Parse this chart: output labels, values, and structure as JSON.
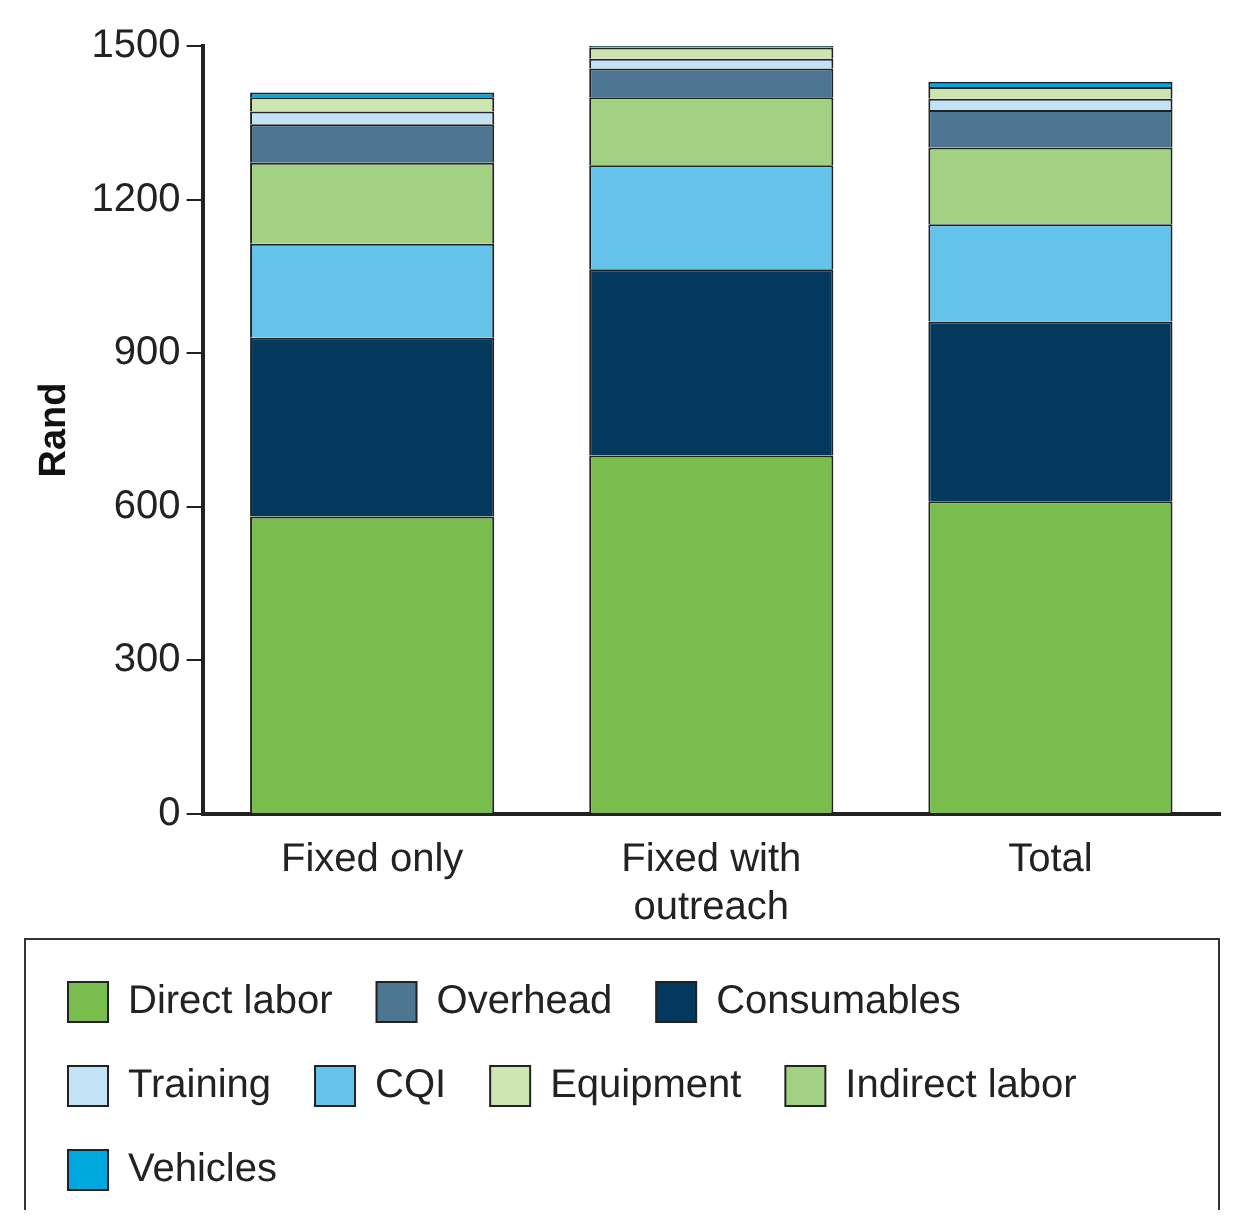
{
  "chart_data": {
    "type": "bar",
    "stacked": true,
    "ylabel": "Rand",
    "categories": [
      "Fixed only",
      "Fixed with outreach",
      "Total"
    ],
    "ylim": [
      0,
      1500
    ],
    "yticks": [
      0,
      300,
      600,
      900,
      1200,
      1500
    ],
    "grid": false,
    "legend": "bottom",
    "series": [
      {
        "name": "Direct labor",
        "color": "#7abd4f",
        "values": [
          581,
          700,
          611
        ]
      },
      {
        "name": "Consumables",
        "color": "#02395c",
        "values": [
          349,
          364,
          351
        ]
      },
      {
        "name": "CQI",
        "color": "#63c3eb",
        "values": [
          184,
          203,
          190
        ]
      },
      {
        "name": "Indirect labor",
        "color": "#a2d183",
        "values": [
          158,
          133,
          150
        ]
      },
      {
        "name": "Overhead",
        "color": "#4b7591",
        "values": [
          75,
          56,
          73
        ]
      },
      {
        "name": "Training",
        "color": "#c2e2f5",
        "values": [
          25,
          19,
          22
        ]
      },
      {
        "name": "Equipment",
        "color": "#cde5b0",
        "values": [
          28,
          22,
          23
        ]
      },
      {
        "name": "Vehicles",
        "color": "#00a8e0",
        "values": [
          9,
          3,
          10
        ]
      }
    ]
  }
}
